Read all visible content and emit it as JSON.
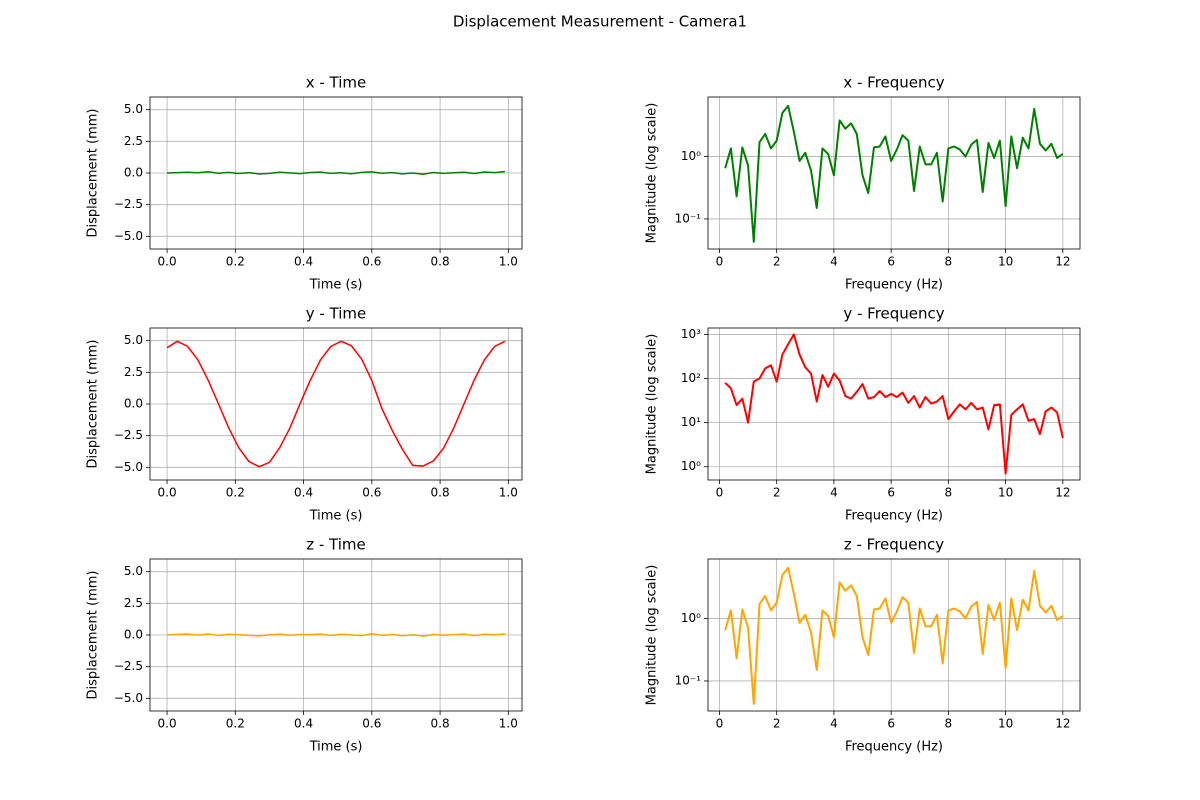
{
  "title": "Displacement Measurement - Camera1",
  "chart_data": [
    {
      "type": "line",
      "title": "x - Time",
      "xlabel": "Time (s)",
      "ylabel": "Displacement (mm)",
      "color": "#008000",
      "grid": true,
      "yscale": "linear",
      "x": [
        0,
        0.03,
        0.06,
        0.09,
        0.12,
        0.15,
        0.18,
        0.21,
        0.24,
        0.27,
        0.3,
        0.33,
        0.36,
        0.39,
        0.42,
        0.45,
        0.48,
        0.51,
        0.54,
        0.57,
        0.6,
        0.63,
        0.66,
        0.69,
        0.72,
        0.75,
        0.78,
        0.81,
        0.84,
        0.87,
        0.9,
        0.93,
        0.96,
        0.99
      ],
      "values": [
        0,
        0.03,
        0.06,
        0.02,
        0.1,
        -0.02,
        0.05,
        -0.04,
        0.03,
        -0.08,
        -0.03,
        0.06,
        0.01,
        -0.05,
        0.04,
        0.07,
        -0.03,
        0.02,
        -0.06,
        0.05,
        0.09,
        -0.02,
        0.03,
        -0.07,
        0,
        -0.1,
        0.04,
        -0.03,
        0.02,
        0.06,
        -0.04,
        0.08,
        0.03,
        0.12
      ],
      "xlim": [
        -0.05,
        1.04
      ],
      "ylim": [
        -6,
        6
      ],
      "xticks": [
        {
          "value": 0,
          "label": "0.0"
        },
        {
          "value": 0.2,
          "label": "0.2"
        },
        {
          "value": 0.4,
          "label": "0.4"
        },
        {
          "value": 0.6,
          "label": "0.6"
        },
        {
          "value": 0.8,
          "label": "0.8"
        },
        {
          "value": 1,
          "label": "1.0"
        }
      ],
      "yticks": [
        {
          "value": -5,
          "label": "−5.0"
        },
        {
          "value": -2.5,
          "label": "−2.5"
        },
        {
          "value": 0,
          "label": "0.0"
        },
        {
          "value": 2.5,
          "label": "2.5"
        },
        {
          "value": 5,
          "label": "5.0"
        }
      ]
    },
    {
      "type": "line",
      "title": "x - Frequency",
      "xlabel": "Frequency (Hz)",
      "ylabel": "Magnitude (log scale)",
      "color": "#008000",
      "grid": true,
      "yscale": "log",
      "x": [
        0.2,
        0.4,
        0.6,
        0.8,
        1,
        1.2,
        1.4,
        1.6,
        1.8,
        2,
        2.2,
        2.4,
        2.6,
        2.8,
        3,
        3.2,
        3.4,
        3.6,
        3.8,
        4,
        4.2,
        4.4,
        4.6,
        4.8,
        5,
        5.2,
        5.4,
        5.6,
        5.8,
        6,
        6.2,
        6.4,
        6.6,
        6.8,
        7,
        7.2,
        7.4,
        7.6,
        7.8,
        8,
        8.2,
        8.4,
        8.6,
        8.8,
        9,
        9.2,
        9.4,
        9.6,
        9.8,
        10,
        10.2,
        10.4,
        10.6,
        10.8,
        11,
        11.2,
        11.4,
        11.6,
        11.8,
        12
      ],
      "values": [
        0.65,
        1.35,
        0.23,
        1.4,
        0.72,
        0.043,
        1.7,
        2.3,
        1.35,
        1.8,
        5.0,
        6.5,
        2.5,
        0.85,
        1.15,
        0.6,
        0.15,
        1.35,
        1.1,
        0.5,
        3.8,
        2.8,
        3.4,
        2.3,
        0.5,
        0.26,
        1.4,
        1.45,
        2.1,
        0.85,
        1.3,
        2.2,
        1.8,
        0.28,
        1.45,
        0.75,
        0.75,
        1.15,
        0.19,
        1.35,
        1.45,
        1.3,
        1.0,
        1.55,
        1.85,
        0.27,
        1.65,
        0.95,
        1.8,
        0.16,
        2.1,
        0.65,
        2.0,
        1.35,
        5.8,
        1.6,
        1.25,
        1.6,
        0.95,
        1.1
      ],
      "xlim": [
        -0.4,
        12.6
      ],
      "ylim": [
        0.033,
        9
      ],
      "xticks": [
        0,
        2,
        4,
        6,
        8,
        10,
        12
      ],
      "yticks": [
        {
          "value": 0.1,
          "label": "10⁻¹"
        },
        {
          "value": 1,
          "label": "10⁰"
        }
      ]
    },
    {
      "type": "line",
      "title": "y - Time",
      "xlabel": "Time (s)",
      "ylabel": "Displacement (mm)",
      "color": "#ff0000",
      "grid": true,
      "yscale": "linear",
      "x": [
        0,
        0.03,
        0.06,
        0.09,
        0.12,
        0.15,
        0.18,
        0.21,
        0.24,
        0.27,
        0.3,
        0.33,
        0.36,
        0.39,
        0.42,
        0.45,
        0.48,
        0.51,
        0.54,
        0.57,
        0.6,
        0.63,
        0.66,
        0.69,
        0.72,
        0.75,
        0.78,
        0.81,
        0.84,
        0.87,
        0.9,
        0.93,
        0.96,
        0.99
      ],
      "values": [
        4.45,
        4.95,
        4.55,
        3.5,
        1.9,
        0.05,
        -1.85,
        -3.45,
        -4.55,
        -4.95,
        -4.6,
        -3.45,
        -1.9,
        0.05,
        1.9,
        3.5,
        4.55,
        4.95,
        4.6,
        3.55,
        1.85,
        -0.4,
        -2.1,
        -3.6,
        -4.85,
        -4.9,
        -4.5,
        -3.5,
        -1.9,
        0,
        1.9,
        3.5,
        4.55,
        4.95
      ],
      "xlim": [
        -0.05,
        1.04
      ],
      "ylim": [
        -6,
        6
      ],
      "xticks": [
        {
          "value": 0,
          "label": "0.0"
        },
        {
          "value": 0.2,
          "label": "0.2"
        },
        {
          "value": 0.4,
          "label": "0.4"
        },
        {
          "value": 0.6,
          "label": "0.6"
        },
        {
          "value": 0.8,
          "label": "0.8"
        },
        {
          "value": 1,
          "label": "1.0"
        }
      ],
      "yticks": [
        {
          "value": -5,
          "label": "−5.0"
        },
        {
          "value": -2.5,
          "label": "−2.5"
        },
        {
          "value": 0,
          "label": "0.0"
        },
        {
          "value": 2.5,
          "label": "2.5"
        },
        {
          "value": 5,
          "label": "5.0"
        }
      ]
    },
    {
      "type": "line",
      "title": "y - Frequency",
      "xlabel": "Frequency (Hz)",
      "ylabel": "Magnitude (log scale)",
      "color": "#ff0000",
      "grid": true,
      "yscale": "log",
      "x": [
        0.2,
        0.4,
        0.6,
        0.8,
        1,
        1.2,
        1.4,
        1.6,
        1.8,
        2,
        2.2,
        2.4,
        2.6,
        2.8,
        3,
        3.2,
        3.4,
        3.6,
        3.8,
        4,
        4.2,
        4.4,
        4.6,
        4.8,
        5,
        5.2,
        5.4,
        5.6,
        5.8,
        6,
        6.2,
        6.4,
        6.6,
        6.8,
        7,
        7.2,
        7.4,
        7.6,
        7.8,
        8,
        8.2,
        8.4,
        8.6,
        8.8,
        9,
        9.2,
        9.4,
        9.6,
        9.8,
        10,
        10.2,
        10.4,
        10.6,
        10.8,
        11,
        11.2,
        11.4,
        11.6,
        11.8,
        12
      ],
      "values": [
        80,
        60,
        25,
        35,
        10,
        85,
        100,
        170,
        200,
        85,
        350,
        600,
        1000,
        350,
        180,
        130,
        30,
        120,
        65,
        130,
        90,
        40,
        35,
        50,
        75,
        35,
        38,
        52,
        38,
        45,
        38,
        48,
        28,
        40,
        22,
        38,
        27,
        30,
        40,
        12,
        18,
        26,
        20,
        28,
        20,
        22,
        7,
        25,
        26,
        0.7,
        15,
        20,
        26,
        11,
        12,
        5.5,
        18,
        22,
        17,
        4.5
      ],
      "xlim": [
        -0.4,
        12.6
      ],
      "ylim": [
        0.5,
        1400
      ],
      "xticks": [
        0,
        2,
        4,
        6,
        8,
        10,
        12
      ],
      "yticks": [
        {
          "value": 1,
          "label": "10⁰"
        },
        {
          "value": 10,
          "label": "10¹"
        },
        {
          "value": 100,
          "label": "10²"
        },
        {
          "value": 1000,
          "label": "10³"
        }
      ]
    },
    {
      "type": "line",
      "title": "z - Time",
      "xlabel": "Time (s)",
      "ylabel": "Displacement (mm)",
      "color": "#ffa500",
      "grid": true,
      "yscale": "linear",
      "x": [
        0,
        0.03,
        0.06,
        0.09,
        0.12,
        0.15,
        0.18,
        0.21,
        0.24,
        0.27,
        0.3,
        0.33,
        0.36,
        0.39,
        0.42,
        0.45,
        0.48,
        0.51,
        0.54,
        0.57,
        0.6,
        0.63,
        0.66,
        0.69,
        0.72,
        0.75,
        0.78,
        0.81,
        0.84,
        0.87,
        0.9,
        0.93,
        0.96,
        0.99
      ],
      "values": [
        0,
        0.05,
        0.08,
        -0.02,
        0.09,
        -0.04,
        0.06,
        0.02,
        -0.03,
        -0.07,
        0.01,
        0.07,
        -0.02,
        0.04,
        0.03,
        0.08,
        -0.04,
        0.06,
        0.01,
        -0.05,
        0.1,
        -0.03,
        0.04,
        -0.06,
        0.02,
        -0.09,
        0.05,
        -0.02,
        0.03,
        0.07,
        -0.05,
        0.06,
        0.02,
        0.1
      ],
      "xlim": [
        -0.05,
        1.04
      ],
      "ylim": [
        -6,
        6
      ],
      "xticks": [
        {
          "value": 0,
          "label": "0.0"
        },
        {
          "value": 0.2,
          "label": "0.2"
        },
        {
          "value": 0.4,
          "label": "0.4"
        },
        {
          "value": 0.6,
          "label": "0.6"
        },
        {
          "value": 0.8,
          "label": "0.8"
        },
        {
          "value": 1,
          "label": "1.0"
        }
      ],
      "yticks": [
        {
          "value": -5,
          "label": "−5.0"
        },
        {
          "value": -2.5,
          "label": "−2.5"
        },
        {
          "value": 0,
          "label": "0.0"
        },
        {
          "value": 2.5,
          "label": "2.5"
        },
        {
          "value": 5,
          "label": "5.0"
        }
      ]
    },
    {
      "type": "line",
      "title": "z - Frequency",
      "xlabel": "Frequency (Hz)",
      "ylabel": "Magnitude (log scale)",
      "color": "#ffa500",
      "grid": true,
      "yscale": "log",
      "x": [
        0.2,
        0.4,
        0.6,
        0.8,
        1,
        1.2,
        1.4,
        1.6,
        1.8,
        2,
        2.2,
        2.4,
        2.6,
        2.8,
        3,
        3.2,
        3.4,
        3.6,
        3.8,
        4,
        4.2,
        4.4,
        4.6,
        4.8,
        5,
        5.2,
        5.4,
        5.6,
        5.8,
        6,
        6.2,
        6.4,
        6.6,
        6.8,
        7,
        7.2,
        7.4,
        7.6,
        7.8,
        8,
        8.2,
        8.4,
        8.6,
        8.8,
        9,
        9.2,
        9.4,
        9.6,
        9.8,
        10,
        10.2,
        10.4,
        10.6,
        10.8,
        11,
        11.2,
        11.4,
        11.6,
        11.8,
        12
      ],
      "values": [
        0.65,
        1.35,
        0.23,
        1.4,
        0.72,
        0.043,
        1.7,
        2.3,
        1.35,
        1.8,
        5.0,
        6.5,
        2.5,
        0.85,
        1.15,
        0.6,
        0.15,
        1.35,
        1.1,
        0.5,
        3.8,
        2.8,
        3.4,
        2.3,
        0.5,
        0.26,
        1.4,
        1.45,
        2.1,
        0.85,
        1.3,
        2.2,
        1.8,
        0.28,
        1.45,
        0.75,
        0.75,
        1.15,
        0.19,
        1.35,
        1.45,
        1.3,
        1.0,
        1.55,
        1.85,
        0.27,
        1.65,
        0.95,
        1.8,
        0.16,
        2.1,
        0.65,
        2.0,
        1.35,
        5.8,
        1.6,
        1.25,
        1.6,
        0.95,
        1.1
      ],
      "xlim": [
        -0.4,
        12.6
      ],
      "ylim": [
        0.033,
        9
      ],
      "xticks": [
        0,
        2,
        4,
        6,
        8,
        10,
        12
      ],
      "yticks": [
        {
          "value": 0.1,
          "label": "10⁻¹"
        },
        {
          "value": 1,
          "label": "10⁰"
        }
      ]
    }
  ]
}
